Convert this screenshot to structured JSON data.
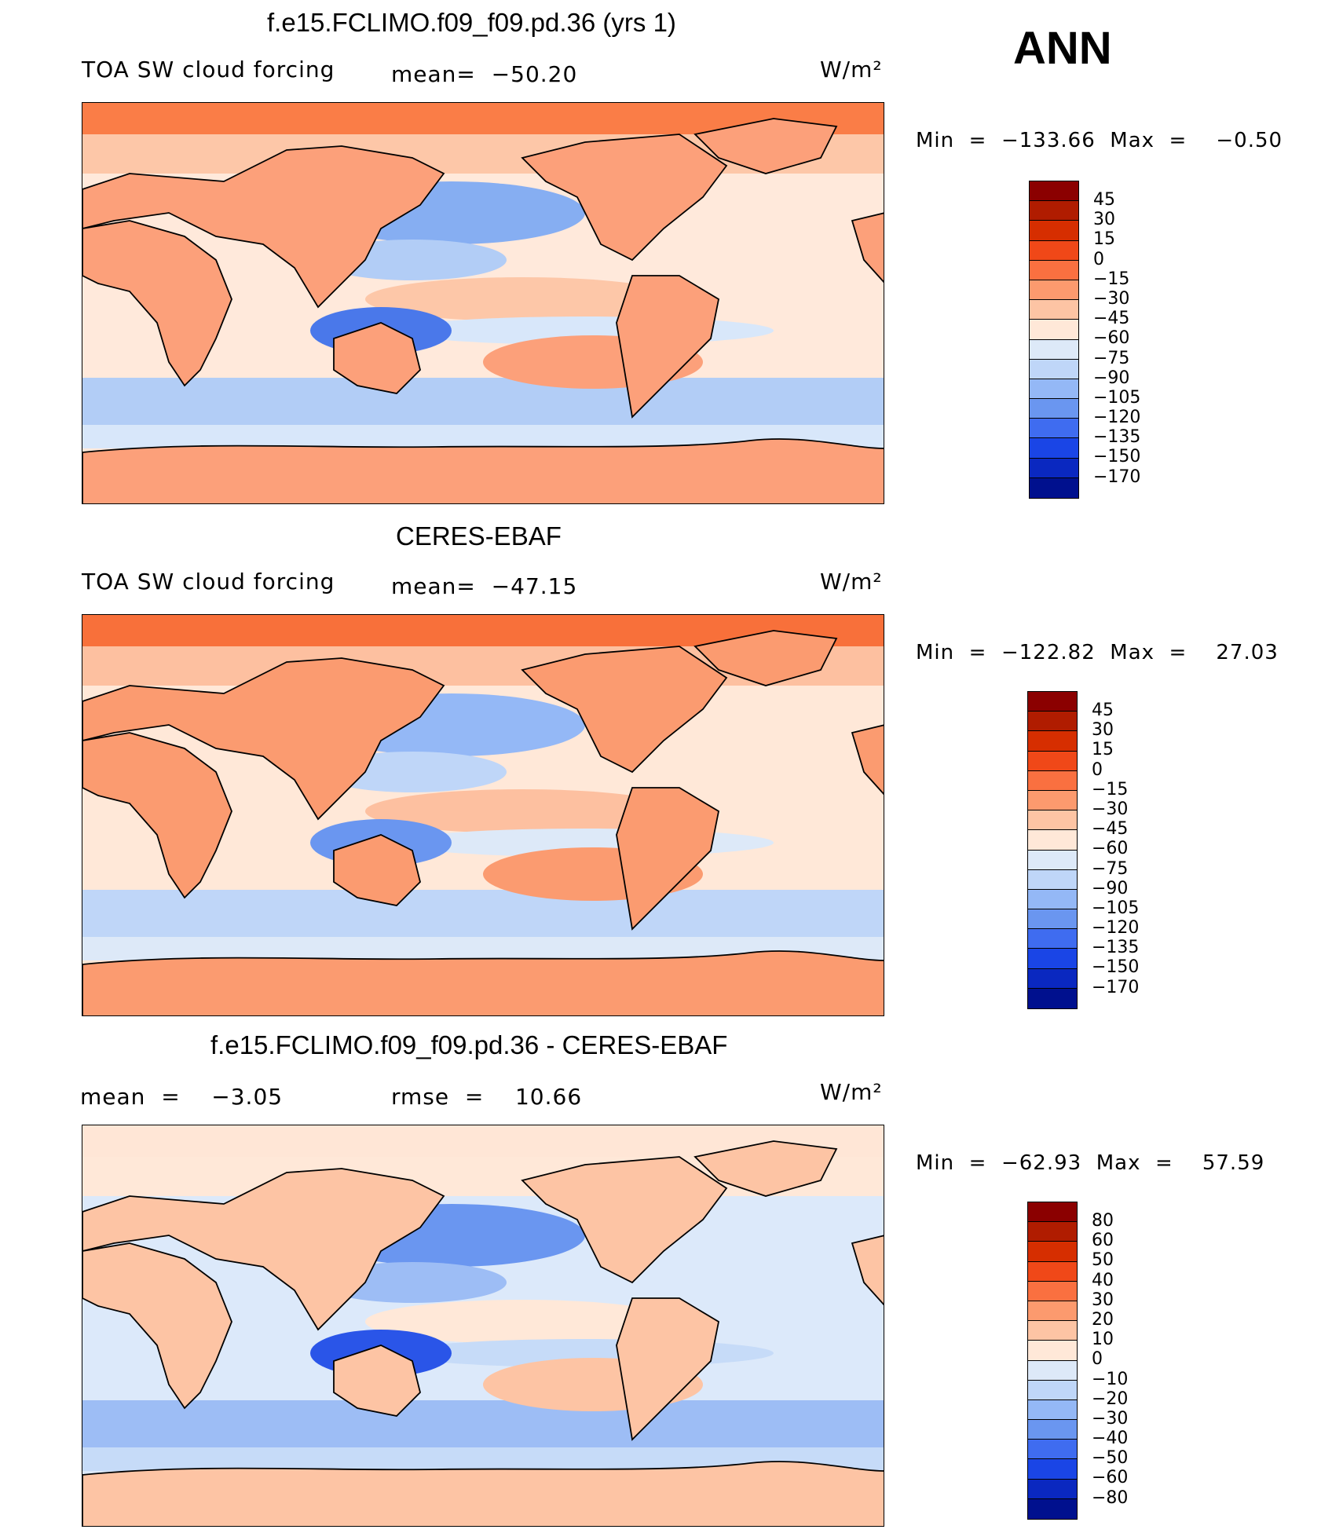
{
  "season": "ANN",
  "panels": [
    {
      "id": "model",
      "title": "f.e15.FCLIMO.f09_f09.pd.36 (yrs 1)",
      "left_label": "TOA SW cloud forcing",
      "center_label": "mean=  −50.20",
      "units": "W/m²",
      "minmax": "Min  =  −133.66  Max  =    −0.50",
      "colorbar": {
        "levels": [
          "45",
          "30",
          "15",
          "0",
          "−15",
          "−30",
          "−45",
          "−60",
          "−75",
          "−90",
          "−105",
          "−120",
          "−135",
          "−150",
          "−170"
        ],
        "colors": [
          "#8b0000",
          "#b01c00",
          "#d62e00",
          "#f04818",
          "#fa7040",
          "#fc9a6e",
          "#fdc4a4",
          "#ffe8d8",
          "#dde9f8",
          "#bfd6f8",
          "#94b8f6",
          "#6a96f0",
          "#3f6cf0",
          "#1a45e6",
          "#0a28c0",
          "#00108e"
        ]
      },
      "map_colors": {
        "polar": "#fa7d47",
        "land_warm": "#fca07a",
        "ocean_mid": "#fdc7a8",
        "neutral": "#ffe9db",
        "cool_light": "#d8e7fa",
        "cool": "#b2cdf6",
        "cool_dark": "#86aef2",
        "deep": "#4a78ea"
      }
    },
    {
      "id": "obs",
      "title": "CERES-EBAF",
      "left_label": "TOA SW cloud forcing",
      "center_label": "mean=  −47.15",
      "units": "W/m²",
      "minmax": "Min  =  −122.82  Max  =    27.03",
      "colorbar": {
        "levels": [
          "45",
          "30",
          "15",
          "0",
          "−15",
          "−30",
          "−45",
          "−60",
          "−75",
          "−90",
          "−105",
          "−120",
          "−135",
          "−150",
          "−170"
        ],
        "colors": [
          "#8b0000",
          "#b01c00",
          "#d62e00",
          "#f04818",
          "#fa7040",
          "#fc9a6e",
          "#fdc4a4",
          "#ffe8d8",
          "#dde9f8",
          "#bfd6f8",
          "#94b8f6",
          "#6a96f0",
          "#3f6cf0",
          "#1a45e6",
          "#0a28c0",
          "#00108e"
        ]
      },
      "map_colors": {
        "polar": "#f8703a",
        "land_warm": "#fb9b70",
        "ocean_mid": "#fdc0a0",
        "neutral": "#ffe8d8",
        "cool_light": "#dde9f8",
        "cool": "#bfd6f8",
        "cool_dark": "#94b8f6",
        "deep": "#6a96f0"
      }
    },
    {
      "id": "diff",
      "title": "f.e15.FCLIMO.f09_f09.pd.36 - CERES-EBAF",
      "left_label": "mean  =    −3.05",
      "center_label": "rmse  =    10.66",
      "units": "W/m²",
      "minmax": "Min  =  −62.93  Max  =    57.59",
      "colorbar": {
        "levels": [
          "80",
          "60",
          "50",
          "40",
          "30",
          "20",
          "10",
          "0",
          "−10",
          "−20",
          "−30",
          "−40",
          "−50",
          "−60",
          "−80"
        ],
        "colors": [
          "#8b0000",
          "#b01c00",
          "#d62e00",
          "#f04818",
          "#fa7040",
          "#fc9a6e",
          "#fdc4a4",
          "#ffe8d8",
          "#dde9f8",
          "#bfd6f8",
          "#94b8f6",
          "#6a96f0",
          "#3f6cf0",
          "#1a45e6",
          "#0a28c0",
          "#00108e"
        ]
      },
      "map_colors": {
        "polar": "#ffe6d6",
        "land_warm": "#fdc4a4",
        "ocean_mid": "#ffe8d8",
        "neutral": "#dce9fa",
        "cool_light": "#c6dbf8",
        "cool": "#9dbdf5",
        "cool_dark": "#6a96f0",
        "deep": "#2a55e8"
      }
    }
  ]
}
